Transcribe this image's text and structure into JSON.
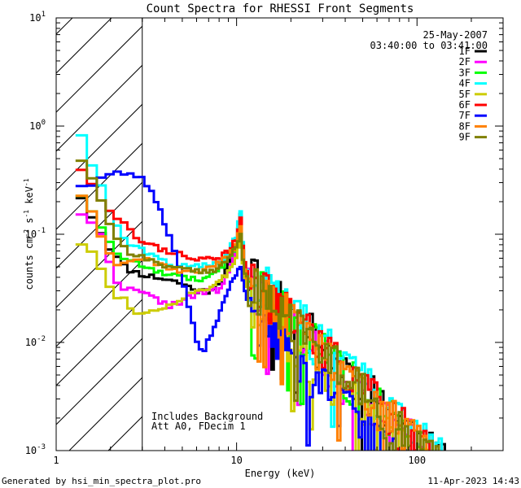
{
  "chart_data": {
    "type": "line",
    "title": "Count Spectra for RHESSI Front Segments",
    "xlabel": "Energy (keV)",
    "ylabel_parts": {
      "a": "counts cm",
      "b": "-2",
      "c": " s",
      "d": "-1",
      "e": " keV",
      "f": "-1"
    },
    "x_scale": "log",
    "y_scale": "log",
    "xlim": [
      1,
      300
    ],
    "ylim": [
      0.001,
      10
    ],
    "x_ticks": [
      {
        "value": 1,
        "label": "1"
      },
      {
        "value": 10,
        "label": "10"
      },
      {
        "value": 100,
        "label": "100"
      }
    ],
    "y_ticks": [
      {
        "value": 0.001,
        "base": "10",
        "exp": "-3"
      },
      {
        "value": 0.01,
        "base": "10",
        "exp": "-2"
      },
      {
        "value": 0.1,
        "base": "10",
        "exp": "-1"
      },
      {
        "value": 1,
        "base": "10",
        "exp": "0"
      },
      {
        "value": 10,
        "base": "10",
        "exp": "1"
      }
    ],
    "date": "25-May-2007",
    "time_range": "03:40:00 to 03:41:00",
    "background_note": "Includes Background",
    "atten_note": "Att A0, FDecim 1",
    "hatched_region": {
      "x_from": 1,
      "x_to": 3
    },
    "series": [
      {
        "name": "1F",
        "color": "#000000",
        "width": 3,
        "seed": 11,
        "f10": 0.095,
        "low": [
          [
            1.3,
            0.27
          ],
          [
            1.5,
            0.17
          ],
          [
            1.7,
            0.12
          ],
          [
            1.9,
            0.085
          ],
          [
            2.1,
            0.065
          ],
          [
            2.4,
            0.05
          ],
          [
            2.7,
            0.045
          ],
          [
            3.1,
            0.042
          ],
          [
            3.6,
            0.04
          ],
          [
            4.2,
            0.038
          ],
          [
            5,
            0.035
          ],
          [
            6,
            0.03
          ],
          [
            7,
            0.03
          ],
          [
            8,
            0.035
          ],
          [
            9,
            0.05
          ],
          [
            10,
            0.085
          ],
          [
            10.5,
            0.16
          ],
          [
            11,
            0.05
          ],
          [
            11.5,
            0.04
          ]
        ]
      },
      {
        "name": "2F",
        "color": "#ff00ff",
        "width": 3,
        "seed": 22,
        "f10": 0.078,
        "low": [
          [
            1.3,
            0.17
          ],
          [
            1.5,
            0.14
          ],
          [
            1.7,
            0.12
          ],
          [
            1.9,
            0.07
          ],
          [
            2.1,
            0.04
          ],
          [
            2.4,
            0.032
          ],
          [
            2.7,
            0.03
          ],
          [
            3.1,
            0.028
          ],
          [
            3.6,
            0.025
          ],
          [
            4.2,
            0.022
          ],
          [
            5,
            0.024
          ],
          [
            6,
            0.028
          ],
          [
            7,
            0.03
          ],
          [
            8,
            0.03
          ],
          [
            9,
            0.045
          ],
          [
            10,
            0.075
          ],
          [
            10.5,
            0.11
          ],
          [
            11,
            0.045
          ],
          [
            11.5,
            0.035
          ]
        ]
      },
      {
        "name": "3F",
        "color": "#00ff00",
        "width": 3,
        "seed": 33,
        "f10": 0.085,
        "low": [
          [
            1.3,
            0.27
          ],
          [
            1.5,
            0.19
          ],
          [
            1.7,
            0.14
          ],
          [
            1.9,
            0.09
          ],
          [
            2.1,
            0.07
          ],
          [
            2.4,
            0.06
          ],
          [
            2.7,
            0.055
          ],
          [
            3.1,
            0.05
          ],
          [
            3.6,
            0.045
          ],
          [
            4.2,
            0.042
          ],
          [
            5,
            0.04
          ],
          [
            6,
            0.038
          ],
          [
            7,
            0.04
          ],
          [
            8,
            0.045
          ],
          [
            9,
            0.06
          ],
          [
            10,
            0.08
          ],
          [
            10.5,
            0.13
          ],
          [
            11,
            0.05
          ],
          [
            11.5,
            0.04
          ]
        ]
      },
      {
        "name": "4F",
        "color": "#00ffff",
        "width": 3,
        "seed": 44,
        "f10": 0.1,
        "low": [
          [
            1.3,
            1.15
          ],
          [
            1.5,
            0.55
          ],
          [
            1.7,
            0.33
          ],
          [
            1.9,
            0.2
          ],
          [
            2.1,
            0.13
          ],
          [
            2.4,
            0.09
          ],
          [
            2.7,
            0.075
          ],
          [
            3.1,
            0.07
          ],
          [
            3.6,
            0.06
          ],
          [
            4.2,
            0.055
          ],
          [
            5,
            0.05
          ],
          [
            6,
            0.05
          ],
          [
            7,
            0.052
          ],
          [
            8,
            0.055
          ],
          [
            9,
            0.07
          ],
          [
            10,
            0.1
          ],
          [
            10.5,
            0.18
          ],
          [
            11,
            0.06
          ],
          [
            11.5,
            0.045
          ]
        ]
      },
      {
        "name": "5F",
        "color": "#cccc00",
        "width": 3,
        "seed": 55,
        "f10": 0.06,
        "low": [
          [
            1.3,
            0.085
          ],
          [
            1.5,
            0.08
          ],
          [
            1.7,
            0.06
          ],
          [
            1.9,
            0.035
          ],
          [
            2.1,
            0.028
          ],
          [
            2.4,
            0.025
          ],
          [
            2.7,
            0.02
          ],
          [
            3.1,
            0.018
          ],
          [
            3.6,
            0.02
          ],
          [
            4.2,
            0.022
          ],
          [
            5,
            0.026
          ],
          [
            6,
            0.03
          ],
          [
            7,
            0.032
          ],
          [
            8,
            0.035
          ],
          [
            9,
            0.045
          ],
          [
            10,
            0.06
          ],
          [
            10.5,
            0.09
          ],
          [
            11,
            0.04
          ],
          [
            11.5,
            0.032
          ]
        ]
      },
      {
        "name": "6F",
        "color": "#ff0000",
        "width": 3,
        "seed": 66,
        "f10": 0.09,
        "low": [
          [
            1.3,
            0.45
          ],
          [
            1.5,
            0.35
          ],
          [
            1.7,
            0.24
          ],
          [
            1.9,
            0.19
          ],
          [
            2.1,
            0.15
          ],
          [
            2.4,
            0.12
          ],
          [
            2.7,
            0.1
          ],
          [
            3.1,
            0.085
          ],
          [
            3.6,
            0.075
          ],
          [
            4.2,
            0.07
          ],
          [
            5,
            0.065
          ],
          [
            6,
            0.06
          ],
          [
            7,
            0.058
          ],
          [
            8,
            0.06
          ],
          [
            9,
            0.07
          ],
          [
            10,
            0.09
          ],
          [
            10.5,
            0.15
          ],
          [
            11,
            0.06
          ],
          [
            11.5,
            0.045
          ]
        ]
      },
      {
        "name": "7F",
        "color": "#0000ff",
        "width": 3,
        "seed": 77,
        "f10": 0.04,
        "low": [
          [
            1.3,
            0.3
          ],
          [
            1.5,
            0.27
          ],
          [
            1.7,
            0.32
          ],
          [
            1.9,
            0.35
          ],
          [
            2.1,
            0.37
          ],
          [
            2.4,
            0.37
          ],
          [
            2.7,
            0.36
          ],
          [
            3.1,
            0.32
          ],
          [
            3.4,
            0.24
          ],
          [
            3.8,
            0.16
          ],
          [
            4.2,
            0.1
          ],
          [
            4.7,
            0.06
          ],
          [
            5.2,
            0.03
          ],
          [
            5.7,
            0.015
          ],
          [
            6.2,
            0.008
          ],
          [
            6.7,
            0.009
          ],
          [
            7.2,
            0.012
          ],
          [
            8,
            0.018
          ],
          [
            9,
            0.03
          ],
          [
            10,
            0.045
          ],
          [
            10.5,
            0.05
          ],
          [
            11,
            0.032
          ],
          [
            11.5,
            0.025
          ]
        ]
      },
      {
        "name": "8F",
        "color": "#ff8000",
        "width": 3,
        "seed": 88,
        "f10": 0.085,
        "low": [
          [
            1.3,
            0.26
          ],
          [
            1.5,
            0.2
          ],
          [
            1.7,
            0.13
          ],
          [
            1.9,
            0.07
          ],
          [
            2.1,
            0.055
          ],
          [
            2.4,
            0.055
          ],
          [
            2.7,
            0.06
          ],
          [
            3.1,
            0.06
          ],
          [
            3.6,
            0.055
          ],
          [
            4.2,
            0.05
          ],
          [
            5,
            0.045
          ],
          [
            6,
            0.045
          ],
          [
            7,
            0.05
          ],
          [
            8,
            0.055
          ],
          [
            9,
            0.065
          ],
          [
            10,
            0.08
          ],
          [
            10.5,
            0.12
          ],
          [
            11,
            0.05
          ],
          [
            11.5,
            0.04
          ]
        ]
      },
      {
        "name": "9F",
        "color": "#808000",
        "width": 3,
        "seed": 99,
        "f10": 0.08,
        "low": [
          [
            1.3,
            0.55
          ],
          [
            1.5,
            0.42
          ],
          [
            1.7,
            0.25
          ],
          [
            1.9,
            0.15
          ],
          [
            2.1,
            0.1
          ],
          [
            2.4,
            0.075
          ],
          [
            2.7,
            0.065
          ],
          [
            3.1,
            0.06
          ],
          [
            3.6,
            0.055
          ],
          [
            4.2,
            0.05
          ],
          [
            5,
            0.047
          ],
          [
            6,
            0.045
          ],
          [
            7,
            0.045
          ],
          [
            8,
            0.05
          ],
          [
            9,
            0.06
          ],
          [
            10,
            0.078
          ],
          [
            10.5,
            0.1
          ],
          [
            11,
            0.045
          ],
          [
            11.5,
            0.038
          ]
        ]
      }
    ]
  },
  "footer": {
    "left": "Generated by hsi_min_spectra_plot.pro",
    "right": "11-Apr-2023 14:43"
  }
}
